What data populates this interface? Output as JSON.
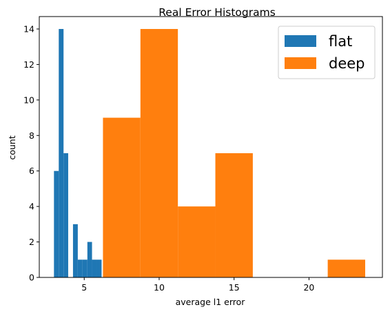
{
  "chart_data": {
    "type": "bar",
    "title": "Real Error Histograms",
    "xlabel": "average l1 error",
    "ylabel": "count",
    "xlim": [
      2.0,
      24.9
    ],
    "ylim": [
      0,
      14.7
    ],
    "xticks": [
      5,
      10,
      15,
      20
    ],
    "yticks": [
      0,
      2,
      4,
      6,
      8,
      10,
      12,
      14
    ],
    "grid": false,
    "legend_position": "top-right",
    "series": [
      {
        "name": "flat",
        "color": "#1f77b4",
        "bins": [
          {
            "x0": 2.98,
            "x1": 3.3,
            "count": 6
          },
          {
            "x0": 3.3,
            "x1": 3.62,
            "count": 14
          },
          {
            "x0": 3.62,
            "x1": 3.93,
            "count": 7
          },
          {
            "x0": 3.93,
            "x1": 4.25,
            "count": 0
          },
          {
            "x0": 4.25,
            "x1": 4.57,
            "count": 3
          },
          {
            "x0": 4.57,
            "x1": 4.89,
            "count": 1
          },
          {
            "x0": 4.89,
            "x1": 5.21,
            "count": 1
          },
          {
            "x0": 5.21,
            "x1": 5.52,
            "count": 2
          },
          {
            "x0": 5.52,
            "x1": 5.84,
            "count": 1
          },
          {
            "x0": 5.84,
            "x1": 6.16,
            "count": 1
          }
        ]
      },
      {
        "name": "deep",
        "color": "#ff7f0e",
        "bins": [
          {
            "x0": 6.25,
            "x1": 8.75,
            "count": 9
          },
          {
            "x0": 8.75,
            "x1": 11.25,
            "count": 14
          },
          {
            "x0": 11.25,
            "x1": 13.75,
            "count": 4
          },
          {
            "x0": 13.75,
            "x1": 16.25,
            "count": 7
          },
          {
            "x0": 16.25,
            "x1": 18.75,
            "count": 0
          },
          {
            "x0": 18.75,
            "x1": 21.25,
            "count": 0
          },
          {
            "x0": 21.25,
            "x1": 23.75,
            "count": 1
          }
        ]
      }
    ]
  }
}
